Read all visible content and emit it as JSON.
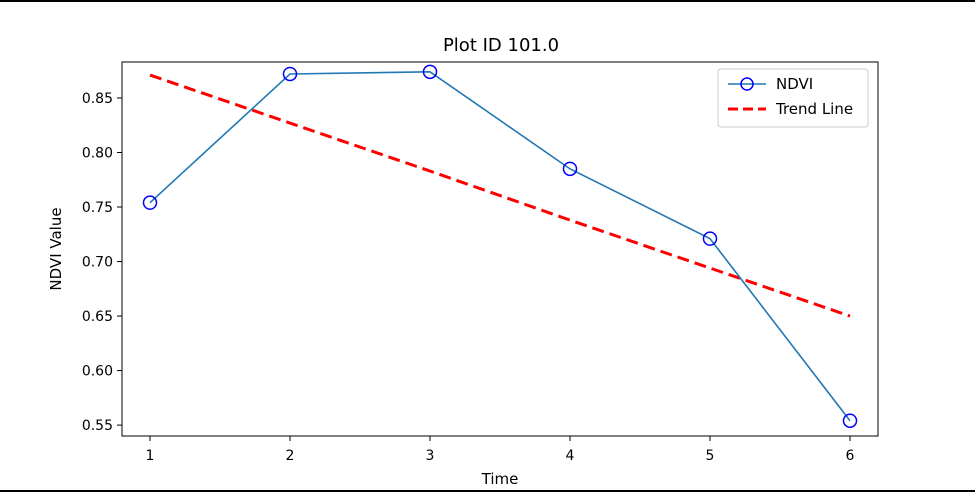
{
  "chart_data": {
    "type": "line",
    "title": "Plot ID 101.0",
    "xlabel": "Time",
    "ylabel": "NDVI Value",
    "x": [
      1,
      2,
      3,
      4,
      5,
      6
    ],
    "xlim": [
      0.8,
      6.2
    ],
    "ylim": [
      0.54,
      0.883
    ],
    "xticks": [
      1,
      2,
      3,
      4,
      5,
      6
    ],
    "yticks": [
      0.55,
      0.6,
      0.65,
      0.7,
      0.75,
      0.8,
      0.85
    ],
    "grid": false,
    "legend_position": "top-right",
    "series": [
      {
        "name": "NDVI",
        "values": [
          0.754,
          0.872,
          0.874,
          0.785,
          0.721,
          0.554
        ],
        "color": "#1f77b4",
        "marker": "circle-open",
        "marker_color": "#0000ff",
        "style": "solid"
      },
      {
        "name": "Trend Line",
        "values": [
          0.871,
          0.827,
          0.783,
          0.738,
          0.694,
          0.65
        ],
        "color": "#ff0000",
        "style": "dashed"
      }
    ]
  }
}
